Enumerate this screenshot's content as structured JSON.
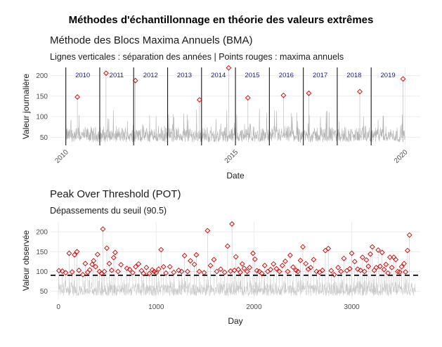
{
  "figure_title": "Méthodes d'échantillonnage en théorie des valeurs extrêmes",
  "colors": {
    "line": "#b3b3b3",
    "pot_line": "#c9c9c9",
    "points": "#cc0000",
    "grid": "#ebebeb",
    "separator": "#000000",
    "threshold": "#000000",
    "year_label": "#1a1a8c"
  },
  "chart_data": [
    {
      "type": "line",
      "title": "Méthode des Blocs Maxima Annuels (BMA)",
      "subtitle": "Lignes verticales : séparation des années | Points rouges : maxima annuels",
      "xlabel": "Date",
      "ylabel": "Valeur journalière",
      "x_axis_type": "date",
      "xlim": [
        "2010-01-01",
        "2019-12-31"
      ],
      "ylim": [
        30,
        220
      ],
      "yticks": [
        50,
        100,
        150,
        200
      ],
      "xticks": [
        "2010",
        "2015",
        "2020"
      ],
      "year_separators": [
        "2010",
        "2011",
        "2012",
        "2013",
        "2014",
        "2015",
        "2016",
        "2017",
        "2018",
        "2019"
      ],
      "year_labels": [
        "2010",
        "2011",
        "2012",
        "2013",
        "2014",
        "2015",
        "2016",
        "2017",
        "2018",
        "2019"
      ],
      "baseline_band": {
        "low": 38,
        "high": 80
      },
      "annual_maxima": [
        {
          "year": "2010",
          "date": "2010-05-05",
          "value": 148
        },
        {
          "year": "2011",
          "date": "2011-03-10",
          "value": 206
        },
        {
          "year": "2012",
          "date": "2012-01-20",
          "value": 188
        },
        {
          "year": "2013",
          "date": "2013-12-10",
          "value": 141
        },
        {
          "year": "2014",
          "date": "2014-10-20",
          "value": 219
        },
        {
          "year": "2015",
          "date": "2015-05-15",
          "value": 146
        },
        {
          "year": "2016",
          "date": "2016-06-01",
          "value": 152
        },
        {
          "year": "2017",
          "date": "2017-03-01",
          "value": 157
        },
        {
          "year": "2018",
          "date": "2018-09-01",
          "value": 161
        },
        {
          "year": "2019",
          "date": "2019-12-10",
          "value": 192
        }
      ],
      "grid": true
    },
    {
      "type": "scatter",
      "title": "Peak Over Threshold (POT)",
      "subtitle": "Dépassements du seuil (90.5)",
      "xlabel": "Day",
      "ylabel": "Valeur observée",
      "xlim": [
        -80,
        3700
      ],
      "ylim": [
        30,
        225
      ],
      "xticks": [
        0,
        1000,
        2000,
        3000
      ],
      "yticks": [
        50,
        100,
        150,
        200
      ],
      "threshold": 90.5,
      "baseline_band": {
        "low": 38,
        "high": 82
      },
      "exceedances": [
        [
          5,
          102
        ],
        [
          40,
          101
        ],
        [
          75,
          97
        ],
        [
          110,
          146
        ],
        [
          140,
          99
        ],
        [
          165,
          142
        ],
        [
          190,
          150
        ],
        [
          210,
          103
        ],
        [
          250,
          92
        ],
        [
          275,
          120
        ],
        [
          300,
          98
        ],
        [
          320,
          104
        ],
        [
          345,
          118
        ],
        [
          360,
          127
        ],
        [
          380,
          112
        ],
        [
          400,
          143
        ],
        [
          420,
          100
        ],
        [
          440,
          95
        ],
        [
          455,
          207
        ],
        [
          470,
          100
        ],
        [
          495,
          159
        ],
        [
          520,
          120
        ],
        [
          545,
          103
        ],
        [
          565,
          135
        ],
        [
          580,
          148
        ],
        [
          610,
          100
        ],
        [
          640,
          117
        ],
        [
          700,
          108
        ],
        [
          730,
          105
        ],
        [
          760,
          97
        ],
        [
          790,
          112
        ],
        [
          820,
          119
        ],
        [
          850,
          102
        ],
        [
          870,
          95
        ],
        [
          900,
          110
        ],
        [
          930,
          95
        ],
        [
          960,
          104
        ],
        [
          980,
          100
        ],
        [
          1000,
          97
        ],
        [
          1025,
          106
        ],
        [
          1050,
          155
        ],
        [
          1075,
          112
        ],
        [
          1100,
          96
        ],
        [
          1140,
          112
        ],
        [
          1180,
          98
        ],
        [
          1230,
          103
        ],
        [
          1260,
          100
        ],
        [
          1290,
          140
        ],
        [
          1320,
          100
        ],
        [
          1350,
          127
        ],
        [
          1390,
          118
        ],
        [
          1410,
          142
        ],
        [
          1440,
          100
        ],
        [
          1490,
          97
        ],
        [
          1525,
          203
        ],
        [
          1555,
          115
        ],
        [
          1590,
          130
        ],
        [
          1620,
          100
        ],
        [
          1660,
          106
        ],
        [
          1700,
          98
        ],
        [
          1730,
          164
        ],
        [
          1760,
          101
        ],
        [
          1775,
          220
        ],
        [
          1800,
          103
        ],
        [
          1815,
          137
        ],
        [
          1840,
          105
        ],
        [
          1860,
          98
        ],
        [
          1880,
          119
        ],
        [
          1900,
          108
        ],
        [
          1930,
          100
        ],
        [
          1955,
          110
        ],
        [
          1990,
          146
        ],
        [
          2010,
          131
        ],
        [
          2030,
          102
        ],
        [
          2055,
          100
        ],
        [
          2080,
          95
        ],
        [
          2110,
          115
        ],
        [
          2140,
          100
        ],
        [
          2170,
          105
        ],
        [
          2200,
          119
        ],
        [
          2230,
          107
        ],
        [
          2260,
          100
        ],
        [
          2290,
          115
        ],
        [
          2320,
          126
        ],
        [
          2345,
          100
        ],
        [
          2370,
          141
        ],
        [
          2400,
          111
        ],
        [
          2430,
          103
        ],
        [
          2450,
          100
        ],
        [
          2475,
          128
        ],
        [
          2500,
          162
        ],
        [
          2530,
          120
        ],
        [
          2555,
          106
        ],
        [
          2580,
          110
        ],
        [
          2610,
          130
        ],
        [
          2640,
          100
        ],
        [
          2670,
          98
        ],
        [
          2700,
          103
        ],
        [
          2730,
          153
        ],
        [
          2760,
          158
        ],
        [
          2790,
          102
        ],
        [
          2820,
          92
        ],
        [
          2860,
          110
        ],
        [
          2890,
          100
        ],
        [
          2920,
          133
        ],
        [
          2950,
          102
        ],
        [
          2980,
          107
        ],
        [
          3000,
          146
        ],
        [
          3030,
          125
        ],
        [
          3060,
          106
        ],
        [
          3090,
          103
        ],
        [
          3110,
          136
        ],
        [
          3130,
          100
        ],
        [
          3150,
          129
        ],
        [
          3170,
          113
        ],
        [
          3190,
          144
        ],
        [
          3210,
          162
        ],
        [
          3230,
          103
        ],
        [
          3250,
          110
        ],
        [
          3270,
          154
        ],
        [
          3290,
          113
        ],
        [
          3310,
          148
        ],
        [
          3330,
          105
        ],
        [
          3350,
          118
        ],
        [
          3370,
          96
        ],
        [
          3390,
          136
        ],
        [
          3410,
          110
        ],
        [
          3430,
          136
        ],
        [
          3450,
          130
        ],
        [
          3470,
          100
        ],
        [
          3490,
          99
        ],
        [
          3510,
          112
        ],
        [
          3535,
          120
        ],
        [
          3550,
          99
        ],
        [
          3570,
          153
        ],
        [
          3590,
          192
        ]
      ],
      "grid": true
    }
  ]
}
